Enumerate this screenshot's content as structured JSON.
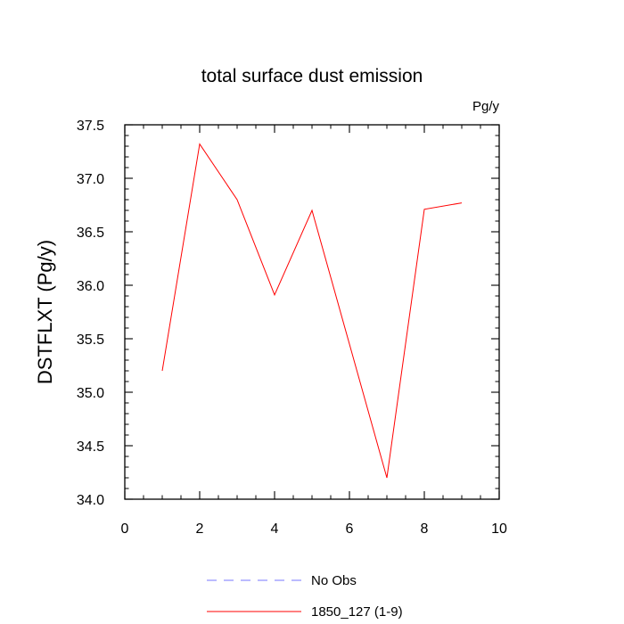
{
  "chart_data": {
    "type": "line",
    "title": "total surface dust emission",
    "units_label": "Pg/y",
    "ylabel": "DSTFLXT  (Pg/y)",
    "xlabel": "",
    "xlim": [
      0,
      10
    ],
    "ylim": [
      34.0,
      37.5
    ],
    "x_ticks": [
      0,
      2,
      4,
      6,
      8,
      10
    ],
    "x_tick_labels": [
      "0",
      "2",
      "4",
      "6",
      "8",
      "10"
    ],
    "y_ticks": [
      34.0,
      34.5,
      35.0,
      35.5,
      36.0,
      36.5,
      37.0,
      37.5
    ],
    "y_tick_labels": [
      "34.0",
      "34.5",
      "35.0",
      "35.5",
      "36.0",
      "36.5",
      "37.0",
      "37.5"
    ],
    "grid": false,
    "legend_position": "bottom-center",
    "series": [
      {
        "name": "1850_127 (1-9)",
        "color": "#ff0000",
        "style": "solid",
        "x": [
          1,
          2,
          3,
          4,
          5,
          6,
          7,
          8,
          9
        ],
        "y": [
          35.2,
          37.32,
          36.8,
          35.91,
          36.7,
          35.45,
          34.2,
          36.71,
          36.77
        ]
      }
    ],
    "legend": [
      {
        "label": "No Obs",
        "color": "#7777ff",
        "style": "dashed"
      },
      {
        "label": "1850_127 (1-9)",
        "color": "#ff0000",
        "style": "solid"
      }
    ]
  }
}
